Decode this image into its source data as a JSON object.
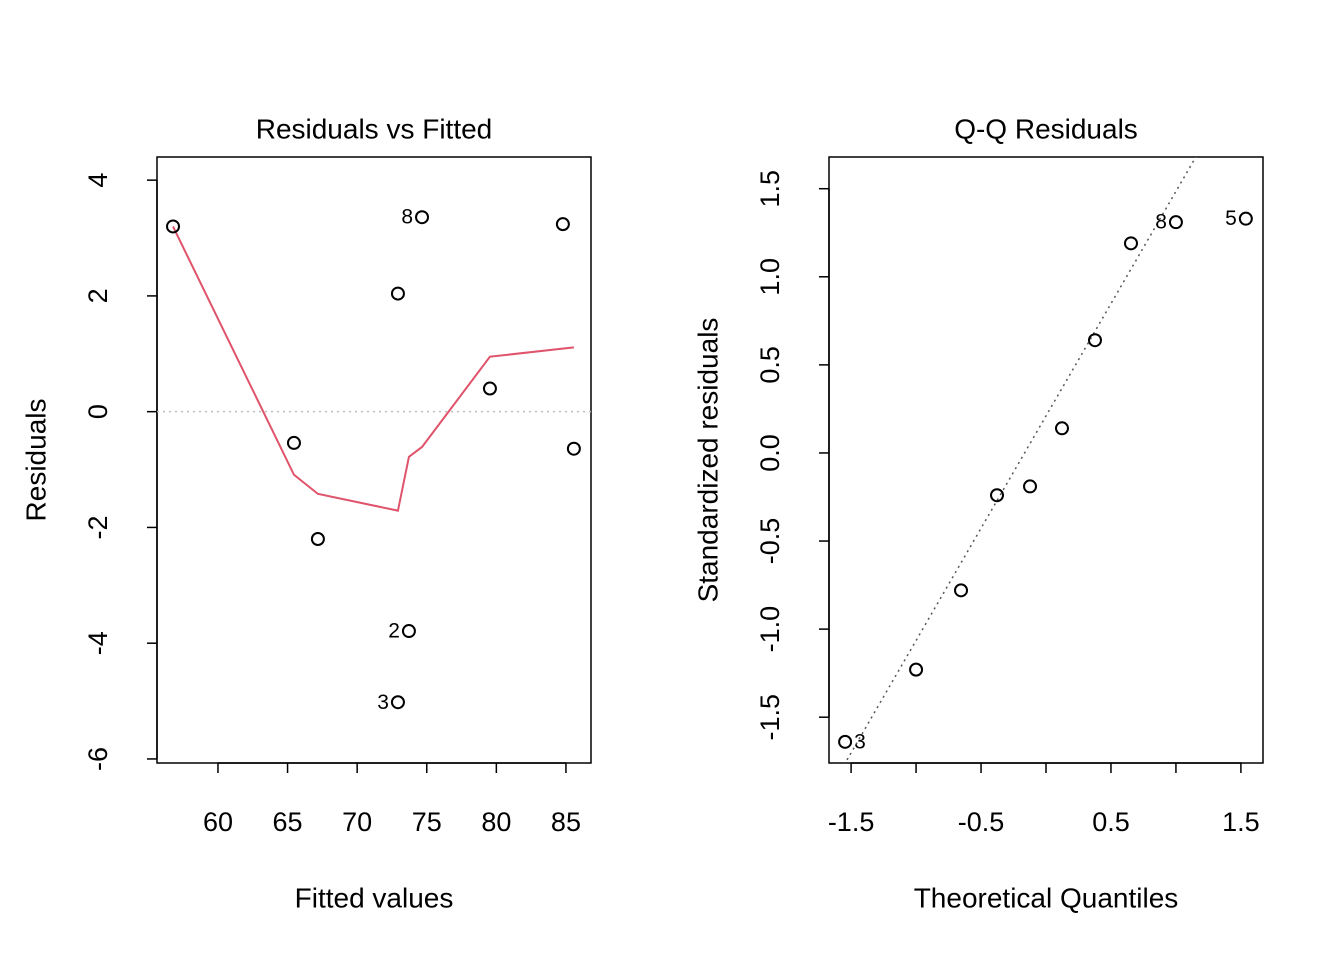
{
  "chart_data": [
    {
      "type": "scatter",
      "title": "Residuals vs Fitted",
      "xlabel": "Fitted values",
      "ylabel": "Residuals",
      "x": [
        56.77,
        65.46,
        67.18,
        72.93,
        72.93,
        73.72,
        74.66,
        79.54,
        84.78,
        85.57
      ],
      "y": [
        3.2,
        -0.54,
        -2.2,
        2.04,
        -5.02,
        -3.79,
        3.36,
        0.4,
        3.24,
        -0.64
      ],
      "point_labels": [
        null,
        null,
        null,
        null,
        "3",
        "2",
        "8",
        null,
        null,
        null
      ],
      "smooth": {
        "color": "#DF536B",
        "x": [
          56.77,
          65.46,
          67.18,
          72.93,
          73.72,
          74.66,
          79.54,
          85.57
        ],
        "y": [
          3.2,
          -1.09,
          -1.42,
          -1.71,
          -0.78,
          -0.61,
          0.95,
          1.11
        ]
      },
      "hline": {
        "value": 0,
        "color": "#BEBEBE"
      },
      "xlim": [
        55.62,
        86.8
      ],
      "ylim": [
        -6.07,
        4.4
      ],
      "xticks": [
        60,
        65,
        70,
        75,
        80,
        85
      ],
      "yticks": [
        -6,
        -4,
        -2,
        0,
        2,
        4
      ]
    },
    {
      "type": "scatter",
      "title": "Q-Q Residuals",
      "xlabel": "Theoretical Quantiles",
      "ylabel": "Standardized residuals",
      "x": [
        -1.546,
        -1.0,
        -0.654,
        -0.377,
        -0.123,
        0.123,
        0.377,
        0.654,
        1.0,
        1.538
      ],
      "y": [
        -1.64,
        -1.23,
        -0.78,
        -0.24,
        -0.19,
        0.14,
        0.64,
        1.19,
        1.31,
        1.33
      ],
      "point_labels": [
        "3",
        null,
        null,
        null,
        null,
        null,
        null,
        null,
        "8",
        "5"
      ],
      "qq_line": {
        "intercept": 0.21,
        "slope": 1.275,
        "color": "#555555"
      },
      "xlim": [
        -1.67,
        1.67
      ],
      "ylim": [
        -1.76,
        1.68
      ],
      "xticks": [
        -1.5,
        -0.5,
        0.5,
        1.5
      ],
      "xticks_unlabeled": [
        -1,
        0,
        1
      ],
      "yticks": [
        -1.5,
        {
          "value": -1,
          "label": "-1.0"
        },
        -0.5,
        {
          "value": 0,
          "label": "0.0"
        },
        0.5,
        {
          "value": 1,
          "label": "1.0"
        },
        1.5
      ]
    }
  ]
}
